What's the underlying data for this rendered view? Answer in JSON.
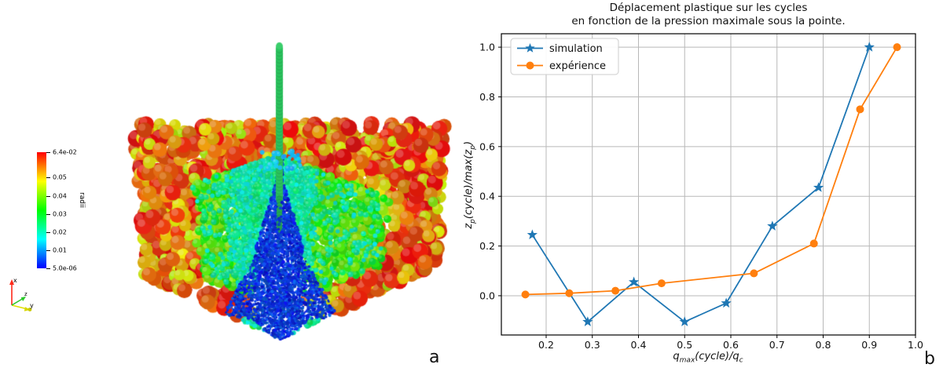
{
  "figure": {
    "background": "#ffffff",
    "panel_a_label": "a",
    "panel_b_label": "b"
  },
  "panel_a": {
    "type": "3d-particle-visualization",
    "description": "DEM sphere packing colored by particle radius with vertical penetrometer rod",
    "colorbar": {
      "title": "radii",
      "ticks": [
        "6.4e-02",
        "0.05",
        "0.04",
        "0.03",
        "0.02",
        "0.01",
        "5.0e-06"
      ],
      "vmin_label": "5.0e-06",
      "vmax_label": "6.4e-02"
    },
    "triad": {
      "x_label": "x",
      "y_label": "y",
      "z_label": "z",
      "x_color": "#ff2a1a",
      "y_color": "#e0e000",
      "z_color": "#28c828"
    },
    "rod_color": "#1fa84e"
  },
  "chart_data": {
    "type": "line",
    "title_lines": [
      "Déplacement plastique sur les cycles",
      "en fonction de la pression maximale sous la pointe."
    ],
    "xlabel": {
      "plain": "q_max(cycle)/q_c",
      "parts": [
        "q",
        "max",
        "(cycle)/q",
        "c"
      ]
    },
    "ylabel": {
      "plain": "z_p(cycle)/max(z_p)",
      "parts": [
        "z",
        "p",
        "(cycle)/max(z",
        "p",
        ")"
      ]
    },
    "xlim": [
      0.103,
      1.0
    ],
    "ylim": [
      -0.158,
      1.054
    ],
    "xticks": [
      0.2,
      0.3,
      0.4,
      0.5,
      0.6,
      0.7,
      0.8,
      0.9,
      1.0
    ],
    "yticks": [
      0.0,
      0.2,
      0.4,
      0.6,
      0.8,
      1.0
    ],
    "grid": true,
    "grid_color": "#b8b8b8",
    "legend_position": "upper-left",
    "series": [
      {
        "name": "simulation",
        "color": "#1f77b4",
        "marker": "star",
        "x": [
          0.17,
          0.29,
          0.39,
          0.5,
          0.59,
          0.69,
          0.79,
          0.9
        ],
        "y": [
          0.245,
          -0.105,
          0.055,
          -0.105,
          -0.03,
          0.28,
          0.435,
          1.0
        ]
      },
      {
        "name": "expérience",
        "color": "#ff7f0e",
        "marker": "circle",
        "x": [
          0.155,
          0.25,
          0.35,
          0.45,
          0.65,
          0.78,
          0.88,
          0.96
        ],
        "y": [
          0.005,
          0.01,
          0.02,
          0.05,
          0.09,
          0.21,
          0.75,
          1.0
        ]
      }
    ]
  }
}
